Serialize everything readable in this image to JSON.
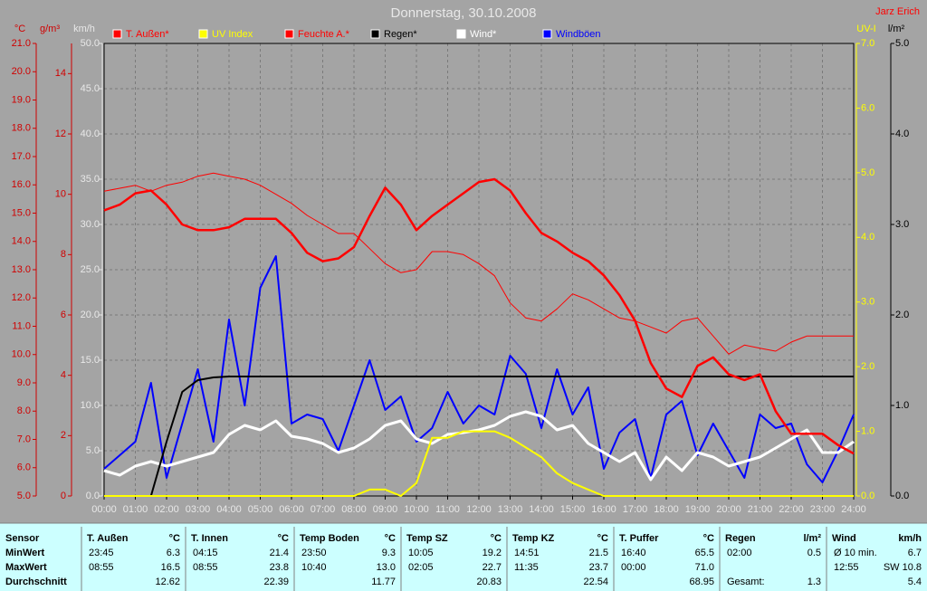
{
  "chart_data": {
    "type": "line",
    "title": "Donnerstag, 30.10.2008",
    "user": "Jarz Erich",
    "x": [
      0,
      0.5,
      1,
      1.5,
      2,
      2.5,
      3,
      3.5,
      4,
      4.5,
      5,
      5.5,
      6,
      6.5,
      7,
      7.5,
      8,
      8.5,
      9,
      9.5,
      10,
      10.5,
      11,
      11.5,
      12,
      12.5,
      13,
      13.5,
      14,
      14.5,
      15,
      15.5,
      16,
      16.5,
      17,
      17.5,
      18,
      18.5,
      19,
      19.5,
      20,
      20.5,
      21,
      21.5,
      22,
      22.5,
      23,
      23.5,
      24
    ],
    "xlim": [
      0,
      24
    ],
    "xticks": [
      {
        "value": 0,
        "label": "00:00"
      },
      {
        "value": 1,
        "label": "01:00"
      },
      {
        "value": 2,
        "label": "02:00"
      },
      {
        "value": 3,
        "label": "03:00"
      },
      {
        "value": 4,
        "label": "04:00"
      },
      {
        "value": 5,
        "label": "05:00"
      },
      {
        "value": 6,
        "label": "06:00"
      },
      {
        "value": 7,
        "label": "07:00"
      },
      {
        "value": 8,
        "label": "08:00"
      },
      {
        "value": 9,
        "label": "09:00"
      },
      {
        "value": 10,
        "label": "10:00"
      },
      {
        "value": 11,
        "label": "11:00"
      },
      {
        "value": 12,
        "label": "12:00"
      },
      {
        "value": 13,
        "label": "13:00"
      },
      {
        "value": 14,
        "label": "14:00"
      },
      {
        "value": 15,
        "label": "15:00"
      },
      {
        "value": 16,
        "label": "16:00"
      },
      {
        "value": 17,
        "label": "17:00"
      },
      {
        "value": 18,
        "label": "18:00"
      },
      {
        "value": 19,
        "label": "19:00"
      },
      {
        "value": 20,
        "label": "20:00"
      },
      {
        "value": 21,
        "label": "21:00"
      },
      {
        "value": 22,
        "label": "22:00"
      },
      {
        "value": 23,
        "label": "23:00"
      },
      {
        "value": 24,
        "label": "24:00"
      }
    ],
    "grid": true,
    "grid_axis": "kmh",
    "y_axes": [
      {
        "id": "temp",
        "unit": "°C",
        "color": "#d00000",
        "lim": [
          5,
          21
        ],
        "ticks": [
          {
            "value": 5,
            "label": "5.0"
          },
          {
            "value": 6,
            "label": "6.0"
          },
          {
            "value": 7,
            "label": "7.0"
          },
          {
            "value": 8,
            "label": "8.0"
          },
          {
            "value": 9,
            "label": "9.0"
          },
          {
            "value": 10,
            "label": "10.0"
          },
          {
            "value": 11,
            "label": "11.0"
          },
          {
            "value": 12,
            "label": "12.0"
          },
          {
            "value": 13,
            "label": "13.0"
          },
          {
            "value": 14,
            "label": "14.0"
          },
          {
            "value": 15,
            "label": "15.0"
          },
          {
            "value": 16,
            "label": "16.0"
          },
          {
            "value": 17,
            "label": "17.0"
          },
          {
            "value": 18,
            "label": "18.0"
          },
          {
            "value": 19,
            "label": "19.0"
          },
          {
            "value": 20,
            "label": "20.0"
          },
          {
            "value": 21,
            "label": "21.0"
          }
        ]
      },
      {
        "id": "hum",
        "unit": "g/m³",
        "color": "#d00000",
        "lim": [
          0,
          15
        ],
        "ticks": [
          0,
          2,
          4,
          6,
          8,
          10,
          12,
          14
        ]
      },
      {
        "id": "kmh",
        "unit": "km/h",
        "color": "#e8e8e8",
        "lim": [
          0,
          50
        ],
        "ticks": [
          {
            "value": 0,
            "label": "0.0"
          },
          {
            "value": 5,
            "label": "5.0"
          },
          {
            "value": 10,
            "label": "10.0"
          },
          {
            "value": 15,
            "label": "15.0"
          },
          {
            "value": 20,
            "label": "20.0"
          },
          {
            "value": 25,
            "label": "25.0"
          },
          {
            "value": 30,
            "label": "30.0"
          },
          {
            "value": 35,
            "label": "35.0"
          },
          {
            "value": 40,
            "label": "40.0"
          },
          {
            "value": 45,
            "label": "45.0"
          },
          {
            "value": 50,
            "label": "50.0"
          }
        ]
      },
      {
        "id": "uv",
        "unit": "UV-I",
        "color": "#ffff00",
        "lim": [
          0,
          7
        ],
        "ticks": [
          {
            "value": 0,
            "label": "0.0"
          },
          {
            "value": 1,
            "label": "1.0"
          },
          {
            "value": 2,
            "label": "2.0"
          },
          {
            "value": 3,
            "label": "3.0"
          },
          {
            "value": 4,
            "label": "4.0"
          },
          {
            "value": 5,
            "label": "5.0"
          },
          {
            "value": 6,
            "label": "6.0"
          },
          {
            "value": 7,
            "label": "7.0"
          }
        ]
      },
      {
        "id": "rain",
        "unit": "l/m²",
        "color": "#000000",
        "lim": [
          0,
          5
        ],
        "ticks": [
          {
            "value": 0,
            "label": "0.0"
          },
          {
            "value": 1,
            "label": "1.0"
          },
          {
            "value": 2,
            "label": "2.0"
          },
          {
            "value": 3,
            "label": "3.0"
          },
          {
            "value": 4,
            "label": "4.0"
          },
          {
            "value": 5,
            "label": "5.0"
          }
        ]
      }
    ],
    "series": [
      {
        "name": "T. Außen*",
        "color": "#ff0000",
        "axis": "temp",
        "line_width": 2.5,
        "values": [
          15.1,
          15.3,
          15.7,
          15.8,
          15.3,
          14.6,
          14.4,
          14.4,
          14.5,
          14.8,
          14.8,
          14.8,
          14.3,
          13.6,
          13.3,
          13.4,
          13.8,
          14.9,
          15.9,
          15.3,
          14.4,
          14.9,
          15.3,
          15.7,
          16.1,
          16.2,
          15.8,
          15.0,
          14.3,
          14.0,
          13.6,
          13.3,
          12.8,
          12.1,
          11.2,
          9.7,
          8.8,
          8.5,
          9.6,
          9.9,
          9.3,
          9.1,
          9.3,
          8.0,
          7.2,
          7.2,
          7.2,
          6.8,
          6.5
        ]
      },
      {
        "name": "UV Index",
        "color": "#ffff00",
        "axis": "uv",
        "line_width": 2,
        "values": [
          0,
          0,
          0,
          0,
          0,
          0,
          0,
          0,
          0,
          0,
          0,
          0,
          0,
          0,
          0,
          0,
          0,
          0.1,
          0.1,
          0,
          0.2,
          0.9,
          0.9,
          1.0,
          1.0,
          1.0,
          0.9,
          0.75,
          0.6,
          0.35,
          0.2,
          0.1,
          0,
          0,
          0,
          0,
          0,
          0,
          0,
          0,
          0,
          0,
          0,
          0,
          0,
          0,
          0,
          0,
          0
        ]
      },
      {
        "name": "Feuchte A.*",
        "color": "#ff0000",
        "axis": "hum",
        "line_width": 1,
        "values": [
          10.1,
          10.2,
          10.3,
          10.1,
          10.3,
          10.4,
          10.6,
          10.7,
          10.6,
          10.5,
          10.3,
          10.0,
          9.7,
          9.3,
          9.0,
          8.7,
          8.7,
          8.2,
          7.7,
          7.4,
          7.5,
          8.1,
          8.1,
          8.0,
          7.7,
          7.3,
          6.4,
          5.9,
          5.8,
          6.2,
          6.7,
          6.5,
          6.2,
          5.9,
          5.8,
          5.6,
          5.4,
          5.8,
          5.9,
          5.3,
          4.7,
          5.0,
          4.9,
          4.8,
          5.1,
          5.3,
          5.3,
          5.3,
          5.3
        ]
      },
      {
        "name": "Regen*",
        "color": "#000000",
        "axis": "rain",
        "line_width": 2,
        "values": [
          0,
          0,
          0,
          0,
          0.6,
          1.15,
          1.28,
          1.31,
          1.32,
          1.32,
          1.32,
          1.32,
          1.32,
          1.32,
          1.32,
          1.32,
          1.32,
          1.32,
          1.32,
          1.32,
          1.32,
          1.32,
          1.32,
          1.32,
          1.32,
          1.32,
          1.32,
          1.32,
          1.32,
          1.32,
          1.32,
          1.32,
          1.32,
          1.32,
          1.32,
          1.32,
          1.32,
          1.32,
          1.32,
          1.32,
          1.32,
          1.32,
          1.32,
          1.32,
          1.32,
          1.32,
          1.32,
          1.32,
          1.32
        ]
      },
      {
        "name": "Wind*",
        "color": "#ffffff",
        "axis": "kmh",
        "line_width": 3,
        "values": [
          2.8,
          2.3,
          3.3,
          3.8,
          3.3,
          3.8,
          4.3,
          4.8,
          6.8,
          7.8,
          7.3,
          8.3,
          6.6,
          6.3,
          5.8,
          4.8,
          5.3,
          6.3,
          7.8,
          8.3,
          6.3,
          5.8,
          6.8,
          7.0,
          7.3,
          7.8,
          8.8,
          9.3,
          8.8,
          7.3,
          7.8,
          5.8,
          4.8,
          3.8,
          4.8,
          1.8,
          4.3,
          2.8,
          4.8,
          4.3,
          3.3,
          3.8,
          4.3,
          5.3,
          6.3,
          7.3,
          4.8,
          4.8,
          6.0
        ]
      },
      {
        "name": "Windböen",
        "color": "#0000ff",
        "axis": "kmh",
        "line_width": 2,
        "values": [
          3.0,
          4.5,
          6.0,
          12.5,
          2.0,
          8.0,
          14.0,
          6.0,
          19.5,
          10.0,
          23.0,
          26.5,
          8.0,
          9.0,
          8.5,
          5.0,
          10.0,
          15.0,
          9.5,
          11.0,
          6.0,
          7.5,
          11.5,
          8.0,
          10.0,
          9.0,
          15.5,
          13.5,
          7.5,
          14.0,
          9.0,
          12.0,
          3.0,
          7.0,
          8.5,
          2.0,
          9.0,
          10.5,
          4.5,
          8.0,
          5.0,
          2.0,
          9.0,
          7.5,
          8.0,
          3.5,
          1.5,
          5.0,
          9.0
        ]
      }
    ]
  },
  "table": {
    "header": "Sensor",
    "row_labels": [
      "MinWert",
      "MaxWert",
      "Durchschnitt"
    ],
    "columns": [
      {
        "name": "T. Außen",
        "unit": "°C",
        "rows": [
          [
            "23:45",
            "6.3"
          ],
          [
            "08:55",
            "16.5"
          ],
          [
            null,
            "12.62"
          ]
        ]
      },
      {
        "name": "T. Innen",
        "unit": "°C",
        "rows": [
          [
            "04:15",
            "21.4"
          ],
          [
            "08:55",
            "23.8"
          ],
          [
            null,
            "22.39"
          ]
        ]
      },
      {
        "name": "Temp Boden",
        "unit": "°C",
        "rows": [
          [
            "23:50",
            "9.3"
          ],
          [
            "10:40",
            "13.0"
          ],
          [
            null,
            "11.77"
          ]
        ]
      },
      {
        "name": "Temp SZ",
        "unit": "°C",
        "rows": [
          [
            "10:05",
            "19.2"
          ],
          [
            "02:05",
            "22.7"
          ],
          [
            null,
            "20.83"
          ]
        ]
      },
      {
        "name": "Temp KZ",
        "unit": "°C",
        "rows": [
          [
            "14:51",
            "21.5"
          ],
          [
            "11:35",
            "23.7"
          ],
          [
            null,
            "22.54"
          ]
        ]
      },
      {
        "name": "T. Puffer",
        "unit": "°C",
        "rows": [
          [
            "16:40",
            "65.5"
          ],
          [
            "00:00",
            "71.0"
          ],
          [
            null,
            "68.95"
          ]
        ]
      },
      {
        "name": "Regen",
        "unit": "l/m²",
        "rows": [
          [
            "02:00",
            "0.5"
          ],
          [
            null,
            null
          ],
          [
            "Gesamt:",
            "1.3"
          ]
        ]
      },
      {
        "name": "Wind",
        "unit": "km/h",
        "rows": [
          [
            "Ø 10 min.",
            "6.7"
          ],
          [
            "12:55",
            "SW 10.8"
          ],
          [
            null,
            "5.4"
          ]
        ]
      }
    ]
  }
}
